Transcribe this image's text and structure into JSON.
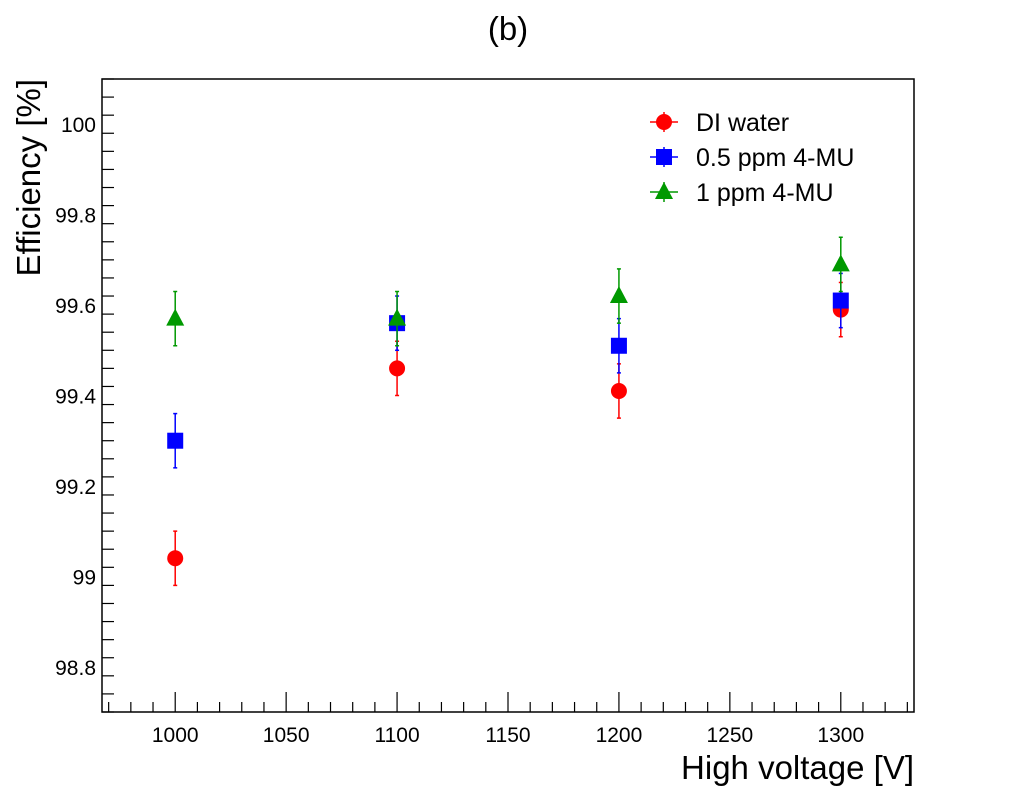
{
  "chart_data": {
    "type": "scatter",
    "title": "(b)",
    "xlabel": "High voltage [V]",
    "ylabel": "Efficiency [%]",
    "xlim": [
      967,
      1333
    ],
    "ylim": [
      98.7,
      100.1
    ],
    "grid": false,
    "legend_position": "top-right",
    "x_ticks": [
      1000,
      1050,
      1100,
      1150,
      1200,
      1250,
      1300
    ],
    "x_tick_labels": [
      "1000",
      "1050",
      "1100",
      "1150",
      "1200",
      "1250",
      "1300"
    ],
    "y_ticks": [
      98.8,
      99.0,
      99.2,
      99.4,
      99.6,
      99.8,
      100.0
    ],
    "y_tick_labels": [
      "98.8",
      "99",
      "99.2",
      "99.4",
      "99.6",
      "99.8",
      "100"
    ],
    "series": [
      {
        "name": "DI water",
        "marker": "circle",
        "color": "#ff0000",
        "x": [
          1000,
          1100,
          1200,
          1300
        ],
        "y": [
          99.04,
          99.46,
          99.41,
          99.59
        ],
        "err": [
          0.06,
          0.06,
          0.06,
          0.06
        ]
      },
      {
        "name": "0.5 ppm 4-MU",
        "marker": "square",
        "color": "#0000ff",
        "x": [
          1000,
          1100,
          1200,
          1300
        ],
        "y": [
          99.3,
          99.56,
          99.51,
          99.61
        ],
        "err": [
          0.06,
          0.06,
          0.06,
          0.06
        ]
      },
      {
        "name": "1 ppm 4-MU",
        "marker": "triangle",
        "color": "#009900",
        "x": [
          1000,
          1100,
          1200,
          1300
        ],
        "y": [
          99.57,
          99.57,
          99.62,
          99.69
        ],
        "err": [
          0.06,
          0.06,
          0.06,
          0.06
        ]
      }
    ]
  }
}
